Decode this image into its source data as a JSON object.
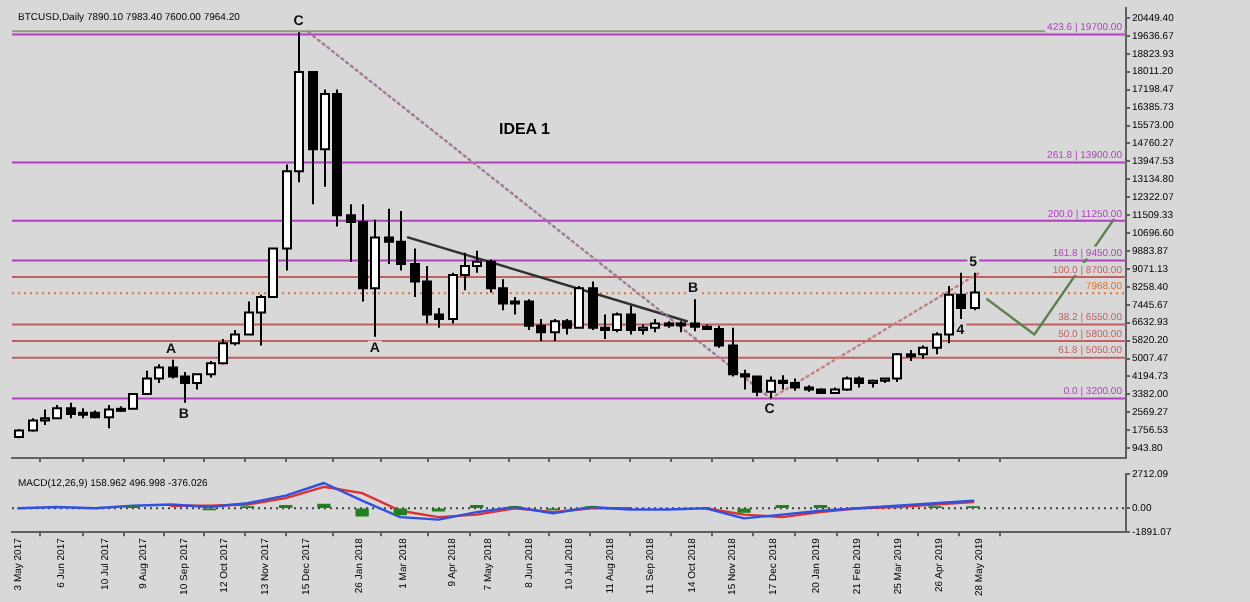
{
  "chart_data": [
    {
      "type": "candlestick",
      "title": "BTCUSD,Daily 7890.10 7983.40 7600.00 7964.20",
      "x": [
        "2017-05-03",
        "2017-05-13",
        "2017-05-23",
        "2017-06-02",
        "2017-06-12",
        "2017-06-22",
        "2017-07-02",
        "2017-07-12",
        "2017-07-22",
        "2017-08-01",
        "2017-08-11",
        "2017-08-21",
        "2017-08-31",
        "2017-09-10",
        "2017-09-20",
        "2017-09-30",
        "2017-10-10",
        "2017-10-20",
        "2017-10-30",
        "2017-11-09",
        "2017-11-19",
        "2017-11-29",
        "2017-12-09",
        "2017-12-19",
        "2017-12-29",
        "2018-01-08",
        "2018-01-18",
        "2018-01-28",
        "2018-02-07",
        "2018-02-17",
        "2018-02-27",
        "2018-03-09",
        "2018-03-19",
        "2018-03-29",
        "2018-04-08",
        "2018-04-18",
        "2018-04-28",
        "2018-05-08",
        "2018-05-18",
        "2018-05-28",
        "2018-06-07",
        "2018-06-17",
        "2018-06-27",
        "2018-07-07",
        "2018-07-17",
        "2018-07-27",
        "2018-08-06",
        "2018-08-16",
        "2018-08-26",
        "2018-09-05",
        "2018-09-15",
        "2018-09-25",
        "2018-10-05",
        "2018-10-15",
        "2018-10-25",
        "2018-11-04",
        "2018-11-14",
        "2018-11-24",
        "2018-12-04",
        "2018-12-14",
        "2018-12-24",
        "2019-01-03",
        "2019-01-13",
        "2019-01-23",
        "2019-02-02",
        "2019-02-12",
        "2019-02-22",
        "2019-03-04",
        "2019-03-14",
        "2019-03-24",
        "2019-04-03",
        "2019-04-13",
        "2019-04-23",
        "2019-05-03",
        "2019-05-13",
        "2019-05-23"
      ],
      "ohlc": [
        [
          1450,
          1800,
          1400,
          1750
        ],
        [
          1750,
          2300,
          1700,
          2200
        ],
        [
          2200,
          2700,
          2000,
          2300
        ],
        [
          2300,
          2900,
          2300,
          2750
        ],
        [
          2750,
          3000,
          2300,
          2500
        ],
        [
          2500,
          2750,
          2300,
          2550
        ],
        [
          2550,
          2650,
          2300,
          2350
        ],
        [
          2350,
          2900,
          1850,
          2700
        ],
        [
          2700,
          2850,
          2600,
          2730
        ],
        [
          2730,
          3450,
          2700,
          3400
        ],
        [
          3400,
          4450,
          3400,
          4100
        ],
        [
          4100,
          4750,
          3900,
          4600
        ],
        [
          4600,
          4950,
          4100,
          4200
        ],
        [
          4200,
          4400,
          3000,
          3900
        ],
        [
          3900,
          4300,
          3600,
          4300
        ],
        [
          4300,
          4900,
          4150,
          4800
        ],
        [
          4800,
          5900,
          4750,
          5700
        ],
        [
          5700,
          6300,
          5600,
          6100
        ],
        [
          6100,
          7600,
          6100,
          7100
        ],
        [
          7100,
          7900,
          5600,
          7800
        ],
        [
          7800,
          10000,
          7800,
          10000
        ],
        [
          10000,
          13800,
          9000,
          13500
        ],
        [
          13500,
          19800,
          13000,
          18000
        ],
        [
          18000,
          18000,
          12000,
          14500
        ],
        [
          14500,
          17200,
          12800,
          17000
        ],
        [
          17000,
          17200,
          11000,
          11500
        ],
        [
          11500,
          12000,
          9400,
          11200
        ],
        [
          11200,
          12000,
          7600,
          8200
        ],
        [
          8200,
          11300,
          6000,
          10500
        ],
        [
          10500,
          11800,
          9300,
          10300
        ],
        [
          10300,
          11700,
          9000,
          9300
        ],
        [
          9300,
          10000,
          7800,
          8500
        ],
        [
          8500,
          9200,
          6600,
          7000
        ],
        [
          7000,
          7300,
          6400,
          6800
        ],
        [
          6800,
          8900,
          6600,
          8800
        ],
        [
          8800,
          9800,
          8100,
          9200
        ],
        [
          9200,
          9900,
          8900,
          9400
        ],
        [
          9400,
          9500,
          8000,
          8200
        ],
        [
          8200,
          8600,
          7200,
          7500
        ],
        [
          7500,
          7800,
          7000,
          7600
        ],
        [
          7600,
          7700,
          6300,
          6500
        ],
        [
          6500,
          6800,
          5800,
          6200
        ],
        [
          6200,
          6800,
          5800,
          6700
        ],
        [
          6700,
          6800,
          6100,
          6400
        ],
        [
          6400,
          8300,
          6400,
          8200
        ],
        [
          8200,
          8500,
          6300,
          6400
        ],
        [
          6400,
          7000,
          5900,
          6300
        ],
        [
          6300,
          7100,
          6200,
          7000
        ],
        [
          7000,
          7400,
          6100,
          6300
        ],
        [
          6300,
          6550,
          6100,
          6400
        ],
        [
          6400,
          6800,
          6200,
          6600
        ],
        [
          6600,
          6700,
          6400,
          6600
        ],
        [
          6600,
          6700,
          6200,
          6600
        ],
        [
          6600,
          7700,
          6250,
          6450
        ],
        [
          6450,
          6550,
          6300,
          6350
        ],
        [
          6350,
          6500,
          5500,
          5600
        ],
        [
          5600,
          6400,
          4200,
          4300
        ],
        [
          4300,
          4500,
          3600,
          4200
        ],
        [
          4200,
          4200,
          3300,
          3500
        ],
        [
          3500,
          4200,
          3200,
          4000
        ],
        [
          4000,
          4250,
          3600,
          3900
        ],
        [
          3900,
          4100,
          3550,
          3700
        ],
        [
          3700,
          3800,
          3500,
          3600
        ],
        [
          3600,
          3650,
          3400,
          3450
        ],
        [
          3450,
          3700,
          3400,
          3600
        ],
        [
          3600,
          4200,
          3550,
          4100
        ],
        [
          4100,
          4200,
          3700,
          3900
        ],
        [
          3900,
          4050,
          3700,
          4000
        ],
        [
          4000,
          4100,
          3900,
          4100
        ],
        [
          4100,
          5250,
          3950,
          5200
        ],
        [
          5200,
          5400,
          4900,
          5200
        ],
        [
          5200,
          5600,
          5000,
          5500
        ],
        [
          5500,
          6200,
          5200,
          6100
        ],
        [
          6100,
          8300,
          5700,
          7900
        ],
        [
          7900,
          8900,
          6800,
          7300
        ],
        [
          7300,
          8900,
          7200,
          8000
        ]
      ],
      "series": [
        {
          "type": "line",
          "color": "#a07898",
          "line_style": "dotted",
          "x": [
            "2017-12-17",
            "2018-12-15"
          ],
          "values": [
            19800,
            3200
          ]
        },
        {
          "type": "line",
          "color": "#303030",
          "line_style": "solid",
          "x": [
            "2018-03-05",
            "2018-10-10"
          ],
          "values": [
            10500,
            6700
          ]
        },
        {
          "type": "line",
          "color": "#c08080",
          "line_style": "dotted",
          "x": [
            "2018-12-15",
            "2019-05-28"
          ],
          "values": [
            3200,
            8900
          ]
        },
        {
          "type": "line",
          "color": "#608050",
          "line_style": "solid",
          "x": [
            "2019-06-03",
            "2019-07-10",
            "2019-09-15"
          ],
          "values": [
            7700,
            6100,
            11700
          ]
        }
      ],
      "xlim": [
        "2017-04-28",
        "2019-09-20"
      ],
      "xticks": [
        {
          "value": "2017-05-03",
          "label": null
        },
        {
          "value": "2017-06-06",
          "label": null
        },
        {
          "value": "2017-07-10",
          "label": null
        },
        {
          "value": "2017-08-09",
          "label": null
        },
        {
          "value": "2017-09-10",
          "label": null
        },
        {
          "value": "2017-10-12",
          "label": null
        },
        {
          "value": "2017-11-13",
          "label": null
        },
        {
          "value": "2017-12-15",
          "label": null
        },
        {
          "value": "2018-01-26",
          "label": null
        },
        {
          "value": "2018-03-01",
          "label": null
        },
        {
          "value": "2018-04-09",
          "label": null
        },
        {
          "value": "2018-05-07",
          "label": null
        },
        {
          "value": "2018-06-08",
          "label": null
        },
        {
          "value": "2018-07-10",
          "label": null
        },
        {
          "value": "2018-08-11",
          "label": null
        },
        {
          "value": "2018-09-11",
          "label": null
        },
        {
          "value": "2018-10-14",
          "label": null
        },
        {
          "value": "2018-11-15",
          "label": null
        },
        {
          "value": "2018-12-17",
          "label": null
        },
        {
          "value": "2019-01-20",
          "label": null
        },
        {
          "value": "2019-02-21",
          "label": null
        },
        {
          "value": "2019-03-25",
          "label": null
        },
        {
          "value": "2019-04-26",
          "label": null
        },
        {
          "value": "2019-05-28",
          "label": null
        }
      ],
      "ylim": [
        500,
        20900
      ],
      "yticks": [
        {
          "value": 943.8,
          "label": "943.80"
        },
        {
          "value": 1756.53,
          "label": "1756.53"
        },
        {
          "value": 2569.27,
          "label": "2569.27"
        },
        {
          "value": 3382,
          "label": "3382.00"
        },
        {
          "value": 4194.73,
          "label": "4194.73"
        },
        {
          "value": 5007.47,
          "label": "5007.47"
        },
        {
          "value": 5820.2,
          "label": "5820.20"
        },
        {
          "value": 6632.93,
          "label": "6632.93"
        },
        {
          "value": 7445.67,
          "label": "7445.67"
        },
        {
          "value": 8258.4,
          "label": "8258.40"
        },
        {
          "value": 9071.13,
          "label": "9071.13"
        },
        {
          "value": 9883.87,
          "label": "9883.87"
        },
        {
          "value": 10696.6,
          "label": "10696.60"
        },
        {
          "value": 11509.33,
          "label": "11509.33"
        },
        {
          "value": 12322.07,
          "label": "12322.07"
        },
        {
          "value": 13134.8,
          "label": "13134.80"
        },
        {
          "value": 13947.53,
          "label": "13947.53"
        },
        {
          "value": 14760.27,
          "label": "14760.27"
        },
        {
          "value": 15573,
          "label": "15573.00"
        },
        {
          "value": 16385.73,
          "label": "16385.73"
        },
        {
          "value": 17198.47,
          "label": "17198.47"
        },
        {
          "value": 18011.2,
          "label": "18011.20"
        },
        {
          "value": 18823.93,
          "label": "18823.93"
        },
        {
          "value": 19636.67,
          "label": "19636.67"
        },
        {
          "value": 20449.4,
          "label": "20449.40"
        }
      ],
      "tick_labels": "y",
      "ref_lines": [
        {
          "axis": "y",
          "value": 19850,
          "color": "#8c9a80"
        },
        {
          "axis": "y",
          "value": 19700,
          "label": "423.6 | 19700.00",
          "color": "#b040c0"
        },
        {
          "axis": "y",
          "value": 13900,
          "label": "261.8 | 13900.00",
          "color": "#b040c0"
        },
        {
          "axis": "y",
          "value": 11250,
          "label": "200.0 | 11250.00",
          "color": "#b040c0"
        },
        {
          "axis": "y",
          "value": 9450,
          "label": "161.8 | 9450.00",
          "color": "#b040c0"
        },
        {
          "axis": "y",
          "value": 8700,
          "label": "100.0 | 8700.00",
          "color": "#c06060"
        },
        {
          "axis": "y",
          "value": 7968,
          "label": "7968.00",
          "color": "#e07030",
          "line_style": "dotted"
        },
        {
          "axis": "y",
          "value": 6550,
          "label": "38.2 | 6550.00",
          "color": "#c06060"
        },
        {
          "axis": "y",
          "value": 5800,
          "label": "50.0 | 5800.00",
          "color": "#c06060"
        },
        {
          "axis": "y",
          "value": 5050,
          "label": "61.8 | 5050.00",
          "color": "#c06060"
        },
        {
          "axis": "y",
          "value": 3200,
          "label": "0.0 | 3200.00",
          "color": "#b040c0"
        }
      ],
      "annotations": [
        "IDEA 1",
        {
          "text": "C",
          "x": "2017-12-09",
          "y": 19800
        },
        {
          "text": "A",
          "x": "2017-08-31",
          "y": 4950
        },
        {
          "text": "B",
          "x": "2017-09-10",
          "y": 3000
        },
        {
          "text": "A",
          "x": "2018-02-07",
          "y": 6000
        },
        {
          "text": "B",
          "x": "2018-10-15",
          "y": 7700
        },
        {
          "text": "C",
          "x": "2018-12-14",
          "y": 3200
        },
        {
          "text": "5",
          "x": "2019-05-23",
          "y": 8900
        },
        {
          "text": "4",
          "x": "2019-05-13",
          "y": 6800
        }
      ]
    },
    {
      "type": "line",
      "title": "MACD(12,26,9) 158.962 496.998 -376.026",
      "x": [
        "2017-05-03",
        "2017-06-02",
        "2017-07-02",
        "2017-08-01",
        "2017-08-31",
        "2017-09-30",
        "2017-10-30",
        "2017-11-29",
        "2017-12-29",
        "2018-01-28",
        "2018-02-27",
        "2018-03-29",
        "2018-04-28",
        "2018-05-28",
        "2018-06-27",
        "2018-07-27",
        "2018-08-26",
        "2018-09-25",
        "2018-10-25",
        "2018-11-24",
        "2018-12-24",
        "2019-01-23",
        "2019-02-22",
        "2019-03-24",
        "2019-04-23",
        "2019-05-23"
      ],
      "series": [
        {
          "type": "bar",
          "color": "#208020",
          "values": [
            null,
            null,
            null,
            100,
            null,
            -100,
            100,
            200,
            300,
            -600,
            -500,
            -200,
            200,
            100,
            -100,
            100,
            null,
            null,
            null,
            -300,
            200,
            200,
            null,
            null,
            100,
            100
          ]
        },
        {
          "type": "line",
          "color": "#3050e0",
          "values": [
            0,
            100,
            0,
            200,
            300,
            100,
            400,
            1000,
            2000,
            600,
            -700,
            -900,
            -300,
            100,
            -400,
            100,
            -100,
            -100,
            0,
            -800,
            -500,
            -200,
            0,
            200,
            400,
            600
          ]
        },
        {
          "type": "line",
          "color": "#e03030",
          "values": [
            null,
            null,
            null,
            null,
            200,
            200,
            300,
            800,
            1700,
            1200,
            -200,
            -700,
            -500,
            0,
            -300,
            0,
            0,
            null,
            0,
            -500,
            -700,
            -300,
            0,
            100,
            300,
            500
          ]
        }
      ],
      "xlim": [
        "2017-04-28",
        "2019-09-20"
      ],
      "xticks": [
        {
          "value": "2017-05-03",
          "label": "3 May 2017"
        },
        {
          "value": "2017-06-06",
          "label": "6 Jun 2017"
        },
        {
          "value": "2017-07-10",
          "label": "10 Jul 2017"
        },
        {
          "value": "2017-08-09",
          "label": "9 Aug 2017"
        },
        {
          "value": "2017-09-10",
          "label": "10 Sep 2017"
        },
        {
          "value": "2017-10-12",
          "label": "12 Oct 2017"
        },
        {
          "value": "2017-11-13",
          "label": "13 Nov 2017"
        },
        {
          "value": "2017-12-15",
          "label": "15 Dec 2017"
        },
        {
          "value": "2018-01-26",
          "label": "26 Jan 2018"
        },
        {
          "value": "2018-03-01",
          "label": "1 Mar 2018"
        },
        {
          "value": "2018-04-09",
          "label": "9 Apr 2018"
        },
        {
          "value": "2018-05-07",
          "label": "7 May 2018"
        },
        {
          "value": "2018-06-08",
          "label": "8 Jun 2018"
        },
        {
          "value": "2018-07-10",
          "label": "10 Jul 2018"
        },
        {
          "value": "2018-08-11",
          "label": "11 Aug 2018"
        },
        {
          "value": "2018-09-11",
          "label": "11 Sep 2018"
        },
        {
          "value": "2018-10-14",
          "label": "14 Oct 2018"
        },
        {
          "value": "2018-11-15",
          "label": "15 Nov 2018"
        },
        {
          "value": "2018-12-17",
          "label": "17 Dec 2018"
        },
        {
          "value": "2019-01-20",
          "label": "20 Jan 2019"
        },
        {
          "value": "2019-02-21",
          "label": "21 Feb 2019"
        },
        {
          "value": "2019-03-25",
          "label": "25 Mar 2019"
        },
        {
          "value": "2019-04-26",
          "label": "26 Apr 2019"
        },
        {
          "value": "2019-05-28",
          "label": "28 May 2019"
        }
      ],
      "ylim": [
        -1891.07,
        2712.09
      ],
      "yticks": [
        {
          "value": 2712.09,
          "label": "2712.09"
        },
        {
          "value": 0,
          "label": "0.00"
        },
        {
          "value": -1891.07,
          "label": "-1891.07"
        }
      ],
      "ref_lines": [
        {
          "axis": "y",
          "value": 0,
          "color": "#404040",
          "line_style": "dotted"
        }
      ]
    }
  ]
}
